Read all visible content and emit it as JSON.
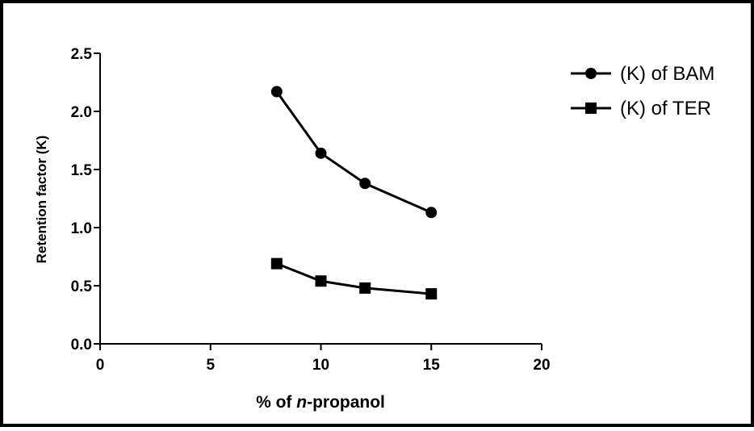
{
  "chart_data": {
    "type": "line",
    "title": "",
    "xlabel_parts": [
      "% of ",
      "n",
      "-propanol"
    ],
    "ylabel": "Retention factor (K)",
    "xlim": [
      0,
      20
    ],
    "ylim": [
      0,
      2.5
    ],
    "xticks": [
      "0",
      "5",
      "10",
      "15",
      "20"
    ],
    "yticks": [
      "0.0",
      "0.5",
      "1.0",
      "1.5",
      "2.0",
      "2.5"
    ],
    "grid": false,
    "legend_position": "top-right",
    "series": [
      {
        "name": "(K) of BAM",
        "marker": "circle",
        "color": "#000000",
        "x": [
          8,
          10,
          12,
          15
        ],
        "y": [
          2.17,
          1.64,
          1.38,
          1.13
        ]
      },
      {
        "name": "(K) of TER",
        "marker": "square",
        "color": "#000000",
        "x": [
          8,
          10,
          12,
          15
        ],
        "y": [
          0.69,
          0.54,
          0.48,
          0.43
        ]
      }
    ]
  }
}
